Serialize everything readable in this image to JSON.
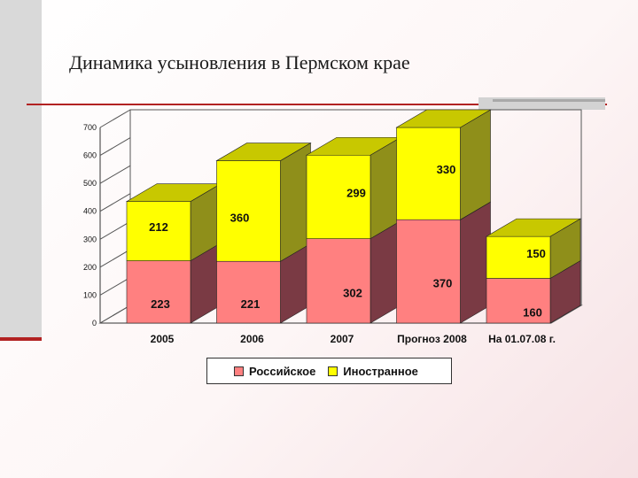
{
  "slide": {
    "title": "Динамика усыновления в Пермском крае"
  },
  "colors": {
    "russian": "#ff8080",
    "russian_side": "#7a3a44",
    "russian_top": "#cc6b6b",
    "foreign": "#ffff00",
    "foreign_side": "#8f8f1a",
    "foreign_top": "#c8c800",
    "accent": "#b22222"
  },
  "chart_data": {
    "type": "bar",
    "stacked": true,
    "categories": [
      "2005",
      "2006",
      "2007",
      "Прогноз 2008",
      "На 01.07.08 г."
    ],
    "series": [
      {
        "name": "Российское",
        "values": [
          223,
          221,
          302,
          370,
          160
        ]
      },
      {
        "name": "Иностранное",
        "values": [
          212,
          360,
          299,
          330,
          150
        ]
      }
    ],
    "ylim": [
      0,
      700
    ],
    "yticks": [
      "0",
      "100",
      "200",
      "300",
      "400",
      "500",
      "600",
      "700"
    ],
    "grid": false,
    "legend": "bottom",
    "data_labels": [
      [
        "223",
        "221",
        "302",
        "370",
        "160"
      ],
      [
        "212",
        "360",
        "299",
        "330",
        "150"
      ]
    ]
  }
}
